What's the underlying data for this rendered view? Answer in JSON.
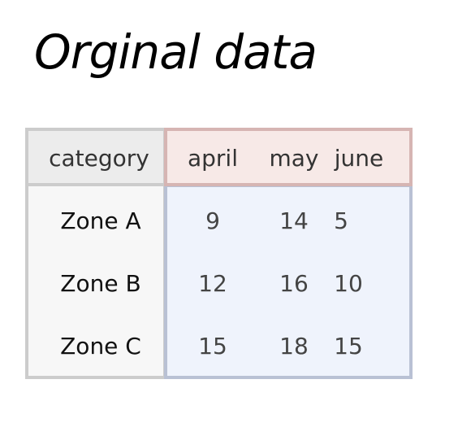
{
  "title": "Orginal data",
  "table": {
    "columns": [
      "category",
      "april",
      "may",
      "june"
    ],
    "rows": [
      {
        "category": "Zone A",
        "april": "9",
        "may": "14",
        "june": "5"
      },
      {
        "category": "Zone B",
        "april": "12",
        "may": "16",
        "june": "10"
      },
      {
        "category": "Zone C",
        "april": "15",
        "may": "18",
        "june": "15"
      }
    ]
  },
  "colors": {
    "category_fill": "#f7f7f7",
    "category_border": "#cccccc",
    "header_fill": "#f7e9e7",
    "header_border": "#d6b5b3",
    "body_fill": "#eff3fc",
    "body_border": "#b9c1d4"
  }
}
